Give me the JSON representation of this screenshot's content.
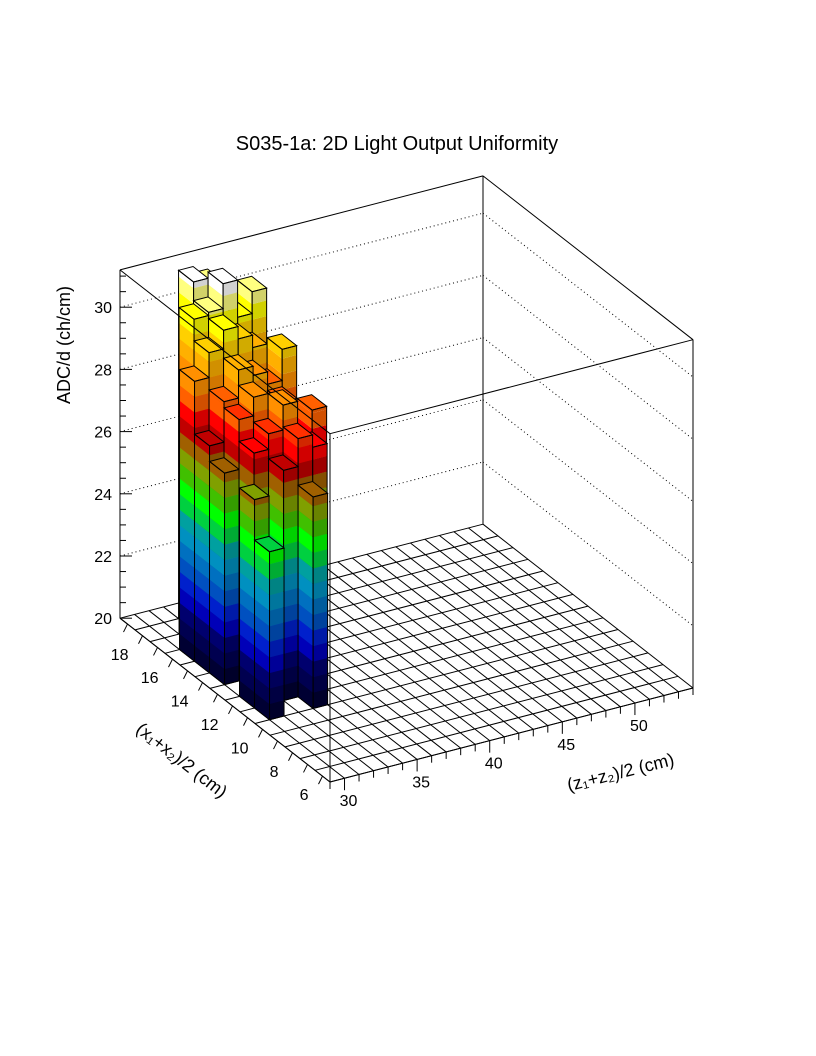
{
  "chart_data": {
    "type": "lego3d",
    "title": "S035-1a: 2D Light Output Uniformity",
    "xlabel": "(z₁+z₂)/2 (cm)",
    "ylabel": "(x₁+x₂)/2 (cm)",
    "zlabel": "ADC/d (ch/cm)",
    "z_axis_range": [
      29,
      54
    ],
    "x_axis_range": [
      5.5,
      19.5
    ],
    "value_range": [
      20,
      31.2
    ],
    "z_ticks": [
      30,
      35,
      40,
      45,
      50
    ],
    "x_ticks": [
      6,
      8,
      10,
      12,
      14,
      16,
      18
    ],
    "value_ticks": [
      20,
      22,
      24,
      26,
      28,
      30
    ],
    "grid": true,
    "z_bin_centers": [
      30.5,
      31.5,
      32.5,
      33.5,
      34.5,
      35.5
    ],
    "x_bin_centers": [
      18,
      17,
      16,
      15,
      14,
      13,
      12,
      11
    ],
    "values": [
      [
        0,
        0,
        31.2,
        31.0,
        30.8,
        0
      ],
      [
        0,
        30.5,
        30.6,
        31.4,
        30.2,
        30.9
      ],
      [
        29.0,
        29.8,
        30.4,
        30.0,
        29.6,
        0
      ],
      [
        27.3,
        28.6,
        29.5,
        29.2,
        28.8,
        29.8
      ],
      [
        26.8,
        28.4,
        29.0,
        28.5,
        28.6,
        0
      ],
      [
        0,
        27.7,
        28.2,
        29.0,
        0,
        28.6
      ],
      [
        26.7,
        0,
        27.4,
        28.3,
        27.9,
        0
      ],
      [
        25.4,
        0,
        0,
        26.8,
        0,
        0
      ]
    ],
    "palette": [
      "#000033",
      "#000050",
      "#00006e",
      "#000090",
      "#0000b8",
      "#0020cc",
      "#0050c0",
      "#0070c0",
      "#0090c0",
      "#00a0a0",
      "#00b070",
      "#00d040",
      "#00ff00",
      "#40c000",
      "#80a000",
      "#a06000",
      "#c00000",
      "#ff0000",
      "#ff3000",
      "#ff6000",
      "#ff9000",
      "#ffb000",
      "#ffd000",
      "#ffff00",
      "#ffff80",
      "#ffffff"
    ]
  }
}
